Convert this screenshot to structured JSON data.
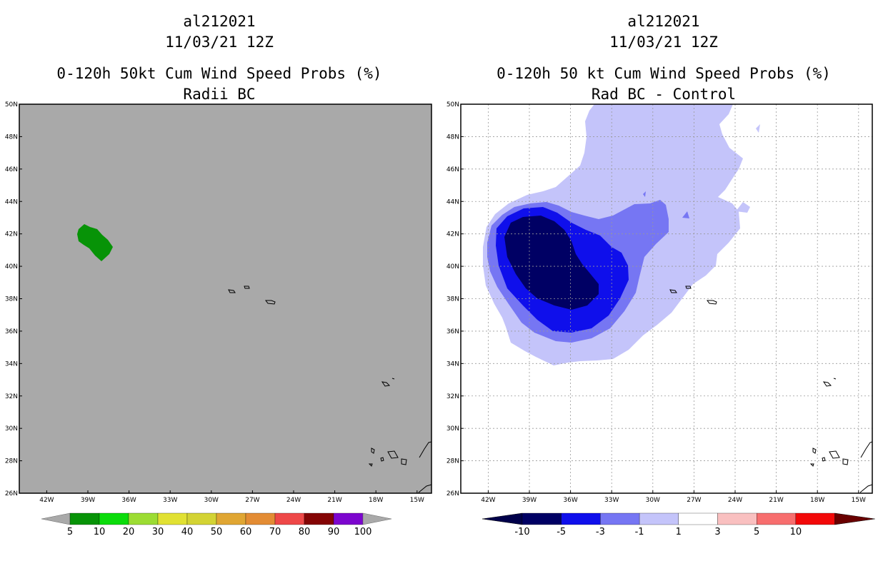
{
  "left_panel": {
    "storm_id": "al212021",
    "datetime": "11/03/21 12Z",
    "title": "0-120h 50kt Cum Wind Speed Probs (%)",
    "subtitle": "Radii BC",
    "background_color": "#a9a9a9",
    "colorbar_labels": [
      "5",
      "10",
      "20",
      "30",
      "40",
      "50",
      "60",
      "70",
      "80",
      "90",
      "100"
    ],
    "colorbar_colors": [
      "#079307",
      "#0bdc0b",
      "#9cdc33",
      "#e1e133",
      "#d3d334",
      "#e0a633",
      "#e38c34",
      "#ee4848",
      "#840404",
      "#7c06ce"
    ]
  },
  "right_panel": {
    "storm_id": "al212021",
    "datetime": "11/03/21 12Z",
    "title": "0-120h 50 kt Cum Wind Speed Probs (%)",
    "subtitle": "Rad BC - Control",
    "colorbar_labels": [
      "-10",
      "-5",
      "-3",
      "-1",
      "1",
      "3",
      "5",
      "10"
    ],
    "colorbar_colors": [
      "#000064",
      "#0f0feb",
      "#7676f3",
      "#c4c4fa",
      "#ffffff",
      "#f9c0c0",
      "#f76e6e",
      "#f20909"
    ],
    "colorbar_end_low": "#00004a",
    "colorbar_end_high": "#6a0000"
  },
  "map": {
    "lat_labels": [
      "50N",
      "48N",
      "46N",
      "44N",
      "42N",
      "40N",
      "38N",
      "36N",
      "34N",
      "32N",
      "30N",
      "28N",
      "26N"
    ],
    "lon_labels": [
      "42W",
      "39W",
      "36W",
      "33W",
      "30W",
      "27W",
      "24W",
      "21W",
      "18W",
      "15W"
    ]
  }
}
